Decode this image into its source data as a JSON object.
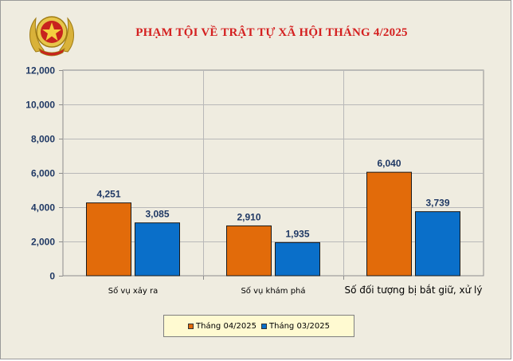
{
  "colors": {
    "background": "#efece0",
    "title": "#d42020",
    "series_1": "#e26b0a",
    "series_2": "#0a6fc9",
    "value_label": "#1f3864",
    "legend_bg": "#fffad1"
  },
  "icons": {
    "emblem": "police-emblem-icon"
  },
  "chart_data": {
    "type": "bar",
    "title": "PHẠM TỘI VỀ TRẬT TỰ XÃ HỘI THÁNG 4/2025",
    "categories": [
      "Số vụ xảy ra",
      "Số vụ khám phá",
      "Số đối tượng bị bắt giữ, xử lý"
    ],
    "series": [
      {
        "name": "Tháng 04/2025",
        "values": [
          4251,
          2910,
          6040
        ],
        "labels": [
          "4,251",
          "2,910",
          "6,040"
        ]
      },
      {
        "name": "Tháng 03/2025",
        "values": [
          3085,
          1935,
          3739
        ],
        "labels": [
          "3,085",
          "1,935",
          "3,739"
        ]
      }
    ],
    "ylim": [
      0,
      12000
    ],
    "yticks": [
      "0",
      "2,000",
      "4,000",
      "6,000",
      "8,000",
      "10,000",
      "12,000"
    ],
    "xlabel": "",
    "ylabel": "",
    "grid": true,
    "legend": "bottom"
  }
}
